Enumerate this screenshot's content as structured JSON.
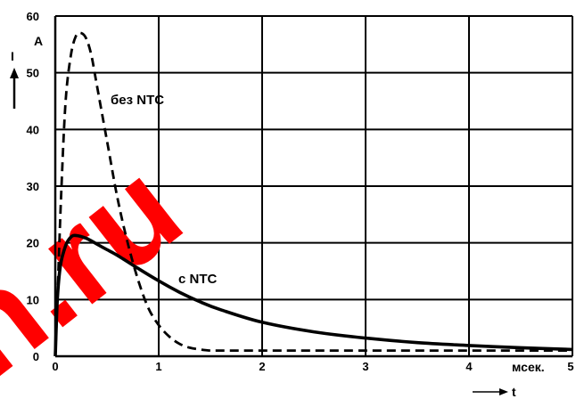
{
  "chart_data": {
    "type": "line",
    "title": "",
    "xlabel": "мсек.",
    "xlabel_suffix": "t",
    "ylabel": "A",
    "ylabel_arrow": "I",
    "xlim": [
      0,
      5
    ],
    "ylim": [
      0,
      60
    ],
    "x_ticks": [
      "0",
      "1",
      "2",
      "3",
      "4",
      "5"
    ],
    "y_ticks": [
      "0",
      "10",
      "20",
      "30",
      "40",
      "50",
      "60"
    ],
    "grid": true,
    "series": [
      {
        "name": "без NTC",
        "style": "dashed",
        "color": "#000000",
        "x": [
          0,
          0.03,
          0.06,
          0.1,
          0.15,
          0.2,
          0.25,
          0.3,
          0.35,
          0.4,
          0.5,
          0.6,
          0.7,
          0.8,
          0.9,
          1.0,
          1.1,
          1.2,
          1.3,
          1.4,
          1.5,
          1.6,
          2.0,
          3.0,
          4.0,
          5.0
        ],
        "y": [
          0,
          15,
          30,
          45,
          53,
          56.5,
          57,
          56,
          53,
          48,
          38,
          28,
          20,
          13.5,
          8.5,
          5.5,
          3.5,
          2.2,
          1.5,
          1.2,
          1.0,
          1.0,
          1.0,
          1.0,
          1.0,
          1.0
        ]
      },
      {
        "name": "с NTC",
        "style": "solid",
        "color": "#000000",
        "x": [
          0,
          0.02,
          0.05,
          0.1,
          0.15,
          0.2,
          0.3,
          0.4,
          0.5,
          0.6,
          0.8,
          1.0,
          1.2,
          1.4,
          1.6,
          2.0,
          2.5,
          3.0,
          3.5,
          4.0,
          4.5,
          5.0
        ],
        "y": [
          0,
          10,
          16,
          19.5,
          21,
          21.3,
          20.8,
          19.8,
          18.8,
          17.8,
          15.5,
          13.3,
          11.3,
          9.6,
          8.2,
          6.0,
          4.3,
          3.2,
          2.4,
          1.9,
          1.5,
          1.2
        ]
      }
    ]
  },
  "watermark": "n.ru"
}
